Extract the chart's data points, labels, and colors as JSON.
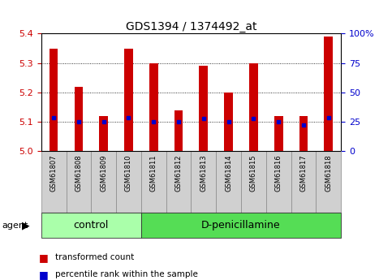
{
  "title": "GDS1394 / 1374492_at",
  "samples": [
    "GSM61807",
    "GSM61808",
    "GSM61809",
    "GSM61810",
    "GSM61811",
    "GSM61812",
    "GSM61813",
    "GSM61814",
    "GSM61815",
    "GSM61816",
    "GSM61817",
    "GSM61818"
  ],
  "transformed_count": [
    5.35,
    5.22,
    5.12,
    5.35,
    5.3,
    5.14,
    5.29,
    5.2,
    5.3,
    5.12,
    5.12,
    5.39
  ],
  "percentile_rank_y": [
    5.115,
    5.1,
    5.1,
    5.115,
    5.1,
    5.1,
    5.11,
    5.1,
    5.11,
    5.1,
    5.09,
    5.115
  ],
  "ylim": [
    5.0,
    5.4
  ],
  "yticks_left": [
    5.0,
    5.1,
    5.2,
    5.3,
    5.4
  ],
  "yticks_right": [
    0,
    25,
    50,
    75,
    100
  ],
  "yticks_right_labels": [
    "0",
    "25",
    "50",
    "75",
    "100%"
  ],
  "groups": [
    {
      "label": "control",
      "start": 0,
      "end": 3,
      "color": "#aaffaa"
    },
    {
      "label": "D-penicillamine",
      "start": 4,
      "end": 11,
      "color": "#55dd55"
    }
  ],
  "agent_label": "agent",
  "bar_color": "#cc0000",
  "pct_color": "#0000cc",
  "bg_tick_area": "#d0d0d0",
  "bar_width": 0.35,
  "legend_red": "transformed count",
  "legend_blue": "percentile rank within the sample",
  "title_fontsize": 10,
  "axis_fontsize": 8,
  "sample_fontsize": 6,
  "group_fontsize": 9
}
